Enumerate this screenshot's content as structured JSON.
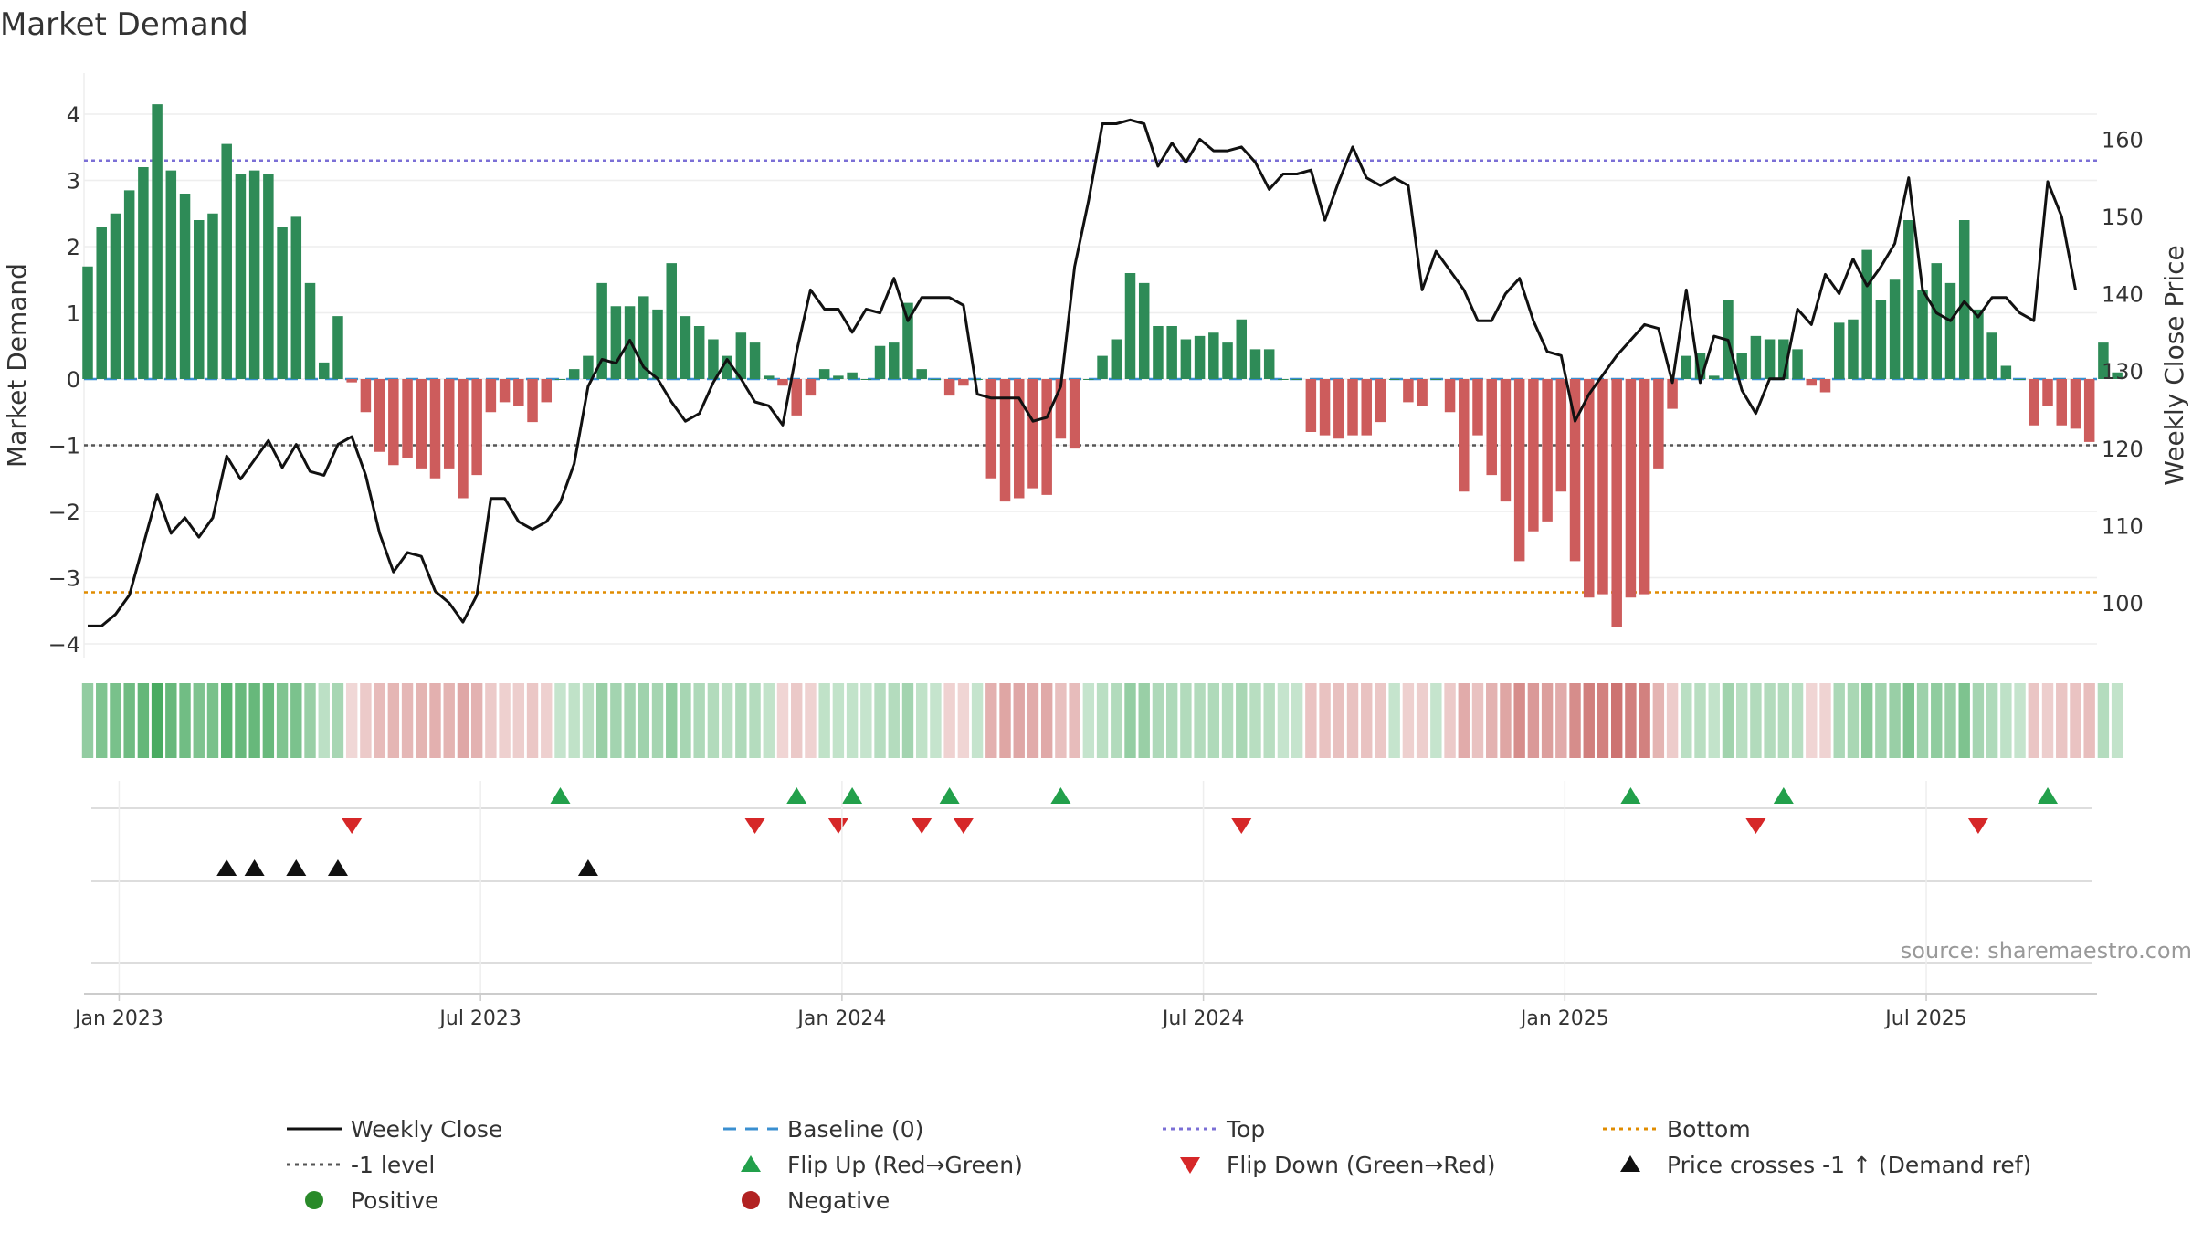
{
  "chart_data": {
    "type": "bar",
    "title": "Market Demand",
    "ylabel": "Market Demand",
    "y2label": "Weekly Close Price",
    "ylim": [
      -4.3,
      4.5
    ],
    "y2lim": [
      94.3,
      166
    ],
    "yticks": [
      "4",
      "3",
      "2",
      "1",
      "0",
      "−1",
      "−2",
      "−3",
      "−4"
    ],
    "y2ticks": [
      "160",
      "150",
      "140",
      "130",
      "120",
      "110",
      "100"
    ],
    "xticks": [
      "Jan 2023",
      "Jul 2023",
      "Jan 2024",
      "Jul 2024",
      "Jan 2025",
      "Jul 2025"
    ],
    "start_week": "2022-12-19",
    "ref_lines": [
      {
        "name": "Top",
        "value": 3.3,
        "color": "#7b6fd6",
        "style": "dotted"
      },
      {
        "name": "-1 level",
        "value": -1.0,
        "color": "#555555",
        "style": "dotted"
      },
      {
        "name": "Bottom",
        "value": -3.22,
        "color": "#e08c00",
        "style": "dotted"
      },
      {
        "name": "Baseline (0)",
        "value": 0,
        "color": "#3a8fd0",
        "style": "dashed"
      }
    ],
    "colors": {
      "positive_bar": "#2e8b57",
      "negative_bar": "#cd5c5c",
      "price_line": "#111111",
      "flip_up": "#22a04b",
      "flip_down": "#d62728",
      "cross": "#111111"
    },
    "series": [
      {
        "name": "Market Demand",
        "values": [
          1.7,
          2.3,
          2.5,
          2.85,
          3.2,
          4.15,
          3.15,
          2.8,
          2.4,
          2.5,
          3.55,
          3.1,
          3.15,
          3.1,
          2.3,
          2.45,
          1.45,
          0.25,
          0.95,
          -0.05,
          -0.5,
          -1.1,
          -1.3,
          -1.2,
          -1.35,
          -1.5,
          -1.35,
          -1.8,
          -1.45,
          -0.5,
          -0.35,
          -0.4,
          -0.65,
          -0.35,
          0.0,
          0.15,
          0.35,
          1.45,
          1.1,
          1.1,
          1.25,
          1.05,
          1.75,
          0.95,
          0.8,
          0.6,
          0.35,
          0.7,
          0.55,
          0.05,
          -0.1,
          -0.55,
          -0.25,
          0.15,
          0.05,
          0.1,
          0.0,
          0.5,
          0.55,
          1.15,
          0.15,
          0.0,
          -0.25,
          -0.1,
          0.0,
          -1.5,
          -1.85,
          -1.8,
          -1.65,
          -1.75,
          -0.9,
          -1.05,
          0.0,
          0.35,
          0.6,
          1.6,
          1.45,
          0.8,
          0.8,
          0.6,
          0.65,
          0.7,
          0.55,
          0.9,
          0.45,
          0.45,
          0.0,
          0.0,
          -0.8,
          -0.85,
          -0.9,
          -0.85,
          -0.85,
          -0.65,
          0.0,
          -0.35,
          -0.4,
          0.0,
          -0.5,
          -1.7,
          -0.85,
          -1.45,
          -1.85,
          -2.75,
          -2.3,
          -2.15,
          -1.7,
          -2.75,
          -3.3,
          -3.25,
          -3.75,
          -3.3,
          -3.25,
          -1.35,
          -0.45,
          0.35,
          0.4,
          0.05,
          1.2,
          0.4,
          0.65,
          0.6,
          0.6,
          0.45,
          -0.1,
          -0.2,
          0.85,
          0.9,
          1.95,
          1.2,
          1.5,
          2.4,
          1.35,
          1.75,
          1.45,
          2.4,
          1.05,
          0.7,
          0.2,
          0.0,
          -0.7,
          -0.4,
          -0.7,
          -0.75,
          -0.95,
          0.55,
          0.1
        ]
      },
      {
        "name": "Weekly Close",
        "values": [
          97,
          97,
          98.5,
          101,
          107.5,
          114,
          109,
          111,
          108.5,
          111,
          119,
          116,
          118.5,
          121,
          117.5,
          120.5,
          117,
          116.5,
          120.5,
          121.5,
          116.5,
          109,
          104,
          106.5,
          106,
          101.5,
          100,
          97.5,
          101,
          113.5,
          113.5,
          110.5,
          109.5,
          110.5,
          113,
          118,
          128,
          131.5,
          131,
          134,
          130.5,
          129,
          126,
          123.5,
          124.5,
          128.5,
          131.5,
          129,
          126,
          125.5,
          123,
          132.5,
          140.5,
          138,
          138,
          135,
          138,
          137.5,
          142,
          136.5,
          139.5,
          139.5,
          139.5,
          138.5,
          127,
          126.5,
          126.5,
          126.5,
          123.5,
          124,
          128,
          143.5,
          152,
          162,
          162,
          162.5,
          162,
          156.5,
          159.5,
          157,
          160,
          158.5,
          158.5,
          159,
          157,
          153.5,
          155.5,
          155.5,
          156,
          149.5,
          154.5,
          159,
          155,
          154,
          155,
          154,
          140.5,
          145.5,
          143,
          140.5,
          136.5,
          136.5,
          140,
          142,
          136.5,
          132.5,
          132,
          123.5,
          127,
          129.5,
          132,
          134,
          136,
          135.5,
          128.5,
          140.5,
          128.5,
          134.5,
          134,
          127.5,
          124.5,
          129,
          129,
          138,
          136,
          142.5,
          140,
          144.5,
          141,
          143.5,
          146.5,
          155,
          140.5,
          137.5,
          136.5,
          139,
          137,
          139.5,
          139.5,
          137.5,
          136.5,
          154.5,
          150,
          140.5
        ]
      }
    ],
    "flip_up_weeks": [
      34,
      51,
      55,
      62,
      70,
      111,
      122,
      141
    ],
    "flip_down_weeks": [
      19,
      48,
      54,
      60,
      63,
      83,
      120,
      136
    ],
    "price_cross_weeks": [
      10,
      12,
      15,
      18,
      36
    ],
    "source": "source: sharemaestro.com",
    "legend_position": "bottom",
    "legend": [
      {
        "label": "Weekly Close",
        "kind": "line",
        "color": "#111111"
      },
      {
        "label": "Baseline (0)",
        "kind": "dashed",
        "color": "#3a8fd0"
      },
      {
        "label": "Top",
        "kind": "dotted",
        "color": "#7b6fd6"
      },
      {
        "label": "Bottom",
        "kind": "dotted",
        "color": "#e08c00"
      },
      {
        "label": "-1 level",
        "kind": "dotted",
        "color": "#555555"
      },
      {
        "label": "Flip Up (Red→Green)",
        "kind": "tri-up",
        "color": "#22a04b"
      },
      {
        "label": "Flip Down (Green→Red)",
        "kind": "tri-down",
        "color": "#d62728"
      },
      {
        "label": "Price crosses -1 ↑ (Demand ref)",
        "kind": "tri-up",
        "color": "#111111"
      },
      {
        "label": "Positive",
        "kind": "dot",
        "color": "#2a8a2a"
      },
      {
        "label": "Negative",
        "kind": "dot",
        "color": "#b22222"
      }
    ]
  }
}
